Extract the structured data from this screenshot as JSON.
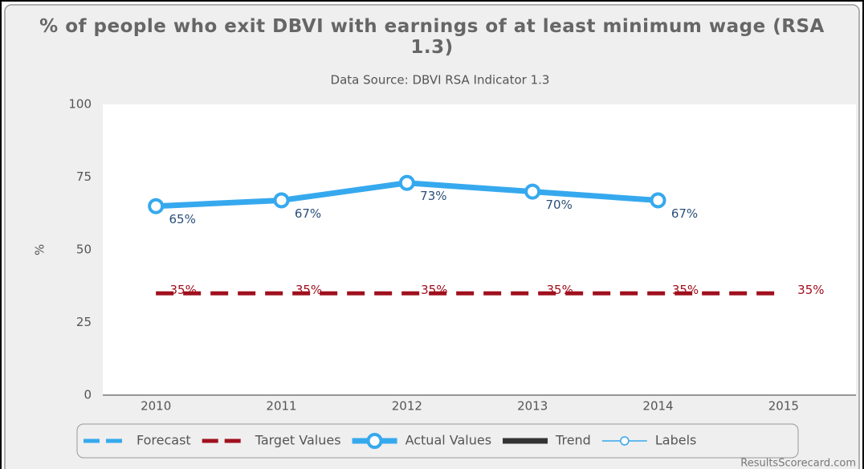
{
  "chart_data": {
    "type": "line",
    "title": "% of people who exit DBVI with earnings of at least minimum wage (RSA 1.3)",
    "subtitle": "Data Source: DBVI RSA Indicator 1.3",
    "y_label": "%",
    "credit": "ResultsScorecard.com",
    "categories": [
      "2010",
      "2011",
      "2012",
      "2013",
      "2014",
      "2015"
    ],
    "series": [
      {
        "name": "Forecast",
        "color": "#36a9ee",
        "line_style": "dashed",
        "marker": false,
        "values": [
          null,
          null,
          null,
          null,
          null,
          null
        ]
      },
      {
        "name": "Target Values",
        "color": "#a0101e",
        "line_style": "dashed",
        "marker": false,
        "values": [
          35,
          35,
          35,
          35,
          35,
          35
        ],
        "value_labels": [
          "35%",
          "35%",
          "35%",
          "35%",
          "35%",
          "35%"
        ]
      },
      {
        "name": "Actual Values",
        "color": "#36a9ee",
        "line_style": "solid",
        "marker": true,
        "values": [
          65,
          67,
          73,
          70,
          67,
          null
        ],
        "value_labels": [
          "65%",
          "67%",
          "73%",
          "70%",
          "67%",
          null
        ]
      },
      {
        "name": "Trend",
        "color": "#333333",
        "line_style": "solid",
        "marker": false,
        "values": [
          null,
          null,
          null,
          null,
          null,
          null
        ]
      },
      {
        "name": "Labels",
        "color": "#36a9ee",
        "line_style": "thin",
        "marker": true,
        "values": [
          null,
          null,
          null,
          null,
          null,
          null
        ]
      }
    ],
    "ylim": [
      0,
      100
    ],
    "yticks": [
      0,
      25,
      50,
      75,
      100
    ],
    "grid": false
  }
}
